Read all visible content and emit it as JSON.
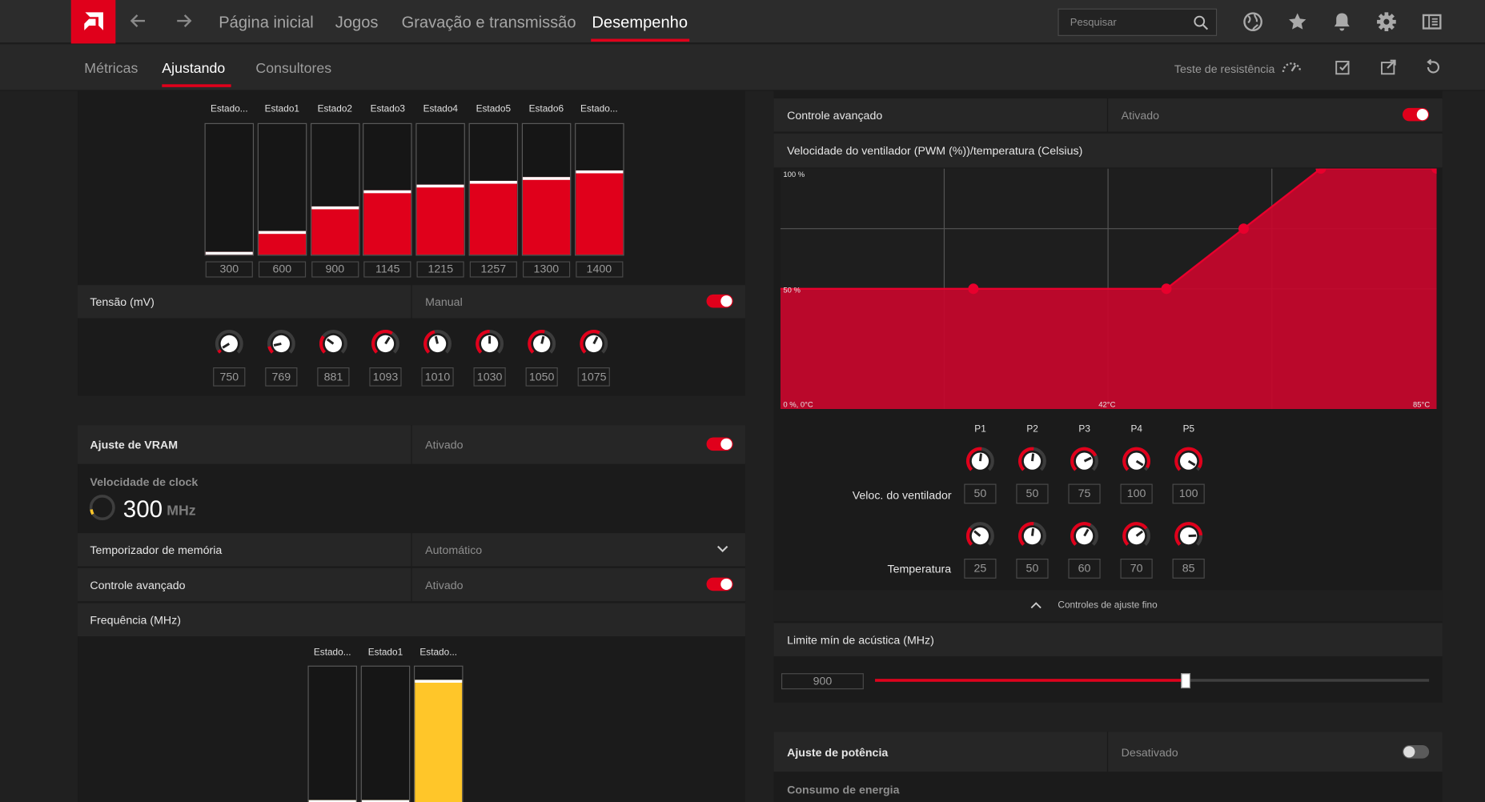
{
  "nav": {
    "links": [
      "Página inicial",
      "Jogos",
      "Gravação e transmissão",
      "Desempenho"
    ],
    "search_placeholder": "Pesquisar"
  },
  "subnav": {
    "tabs": [
      "Métricas",
      "Ajustando",
      "Consultores"
    ],
    "stress_test": "Teste de resistência"
  },
  "gpu_states": {
    "labels": [
      "Estado...",
      "Estado1",
      "Estado2",
      "Estado3",
      "Estado4",
      "Estado5",
      "Estado6",
      "Estado..."
    ],
    "frequencies": [
      "300",
      "600",
      "900",
      "1145",
      "1215",
      "1257",
      "1300",
      "1400"
    ],
    "fill_fraction": [
      0.0,
      0.18,
      0.37,
      0.5,
      0.54,
      0.57,
      0.6,
      0.65
    ]
  },
  "voltage": {
    "label": "Tensão (mV)",
    "mode": "Manual",
    "values": [
      "750",
      "769",
      "881",
      "1093",
      "1010",
      "1030",
      "1050",
      "1075"
    ]
  },
  "vram": {
    "title": "Ajuste de VRAM",
    "status": "Ativado",
    "clock_label": "Velocidade de clock",
    "clock_value": "300",
    "clock_unit": "MHz",
    "timing_label": "Temporizador de memória",
    "timing_value": "Automático",
    "advanced_label": "Controle avançado",
    "advanced_value": "Ativado",
    "freq_label": "Frequência (MHz)",
    "state_labels": [
      "Estado...",
      "Estado1",
      "Estado..."
    ],
    "fill_fraction": [
      0.0,
      0.0,
      0.9
    ]
  },
  "fan": {
    "advanced_label": "Controle avançado",
    "advanced_value": "Ativado",
    "chart_title": "Velocidade do ventilador (PWM (%))/temperatura (Celsius)",
    "y_top": "100 %",
    "y_mid": "50 %",
    "origin": "0 %, 0°C",
    "x_mid": "42°C",
    "x_max": "85°C",
    "points": [
      "P1",
      "P2",
      "P3",
      "P4",
      "P5"
    ],
    "speed_label": "Veloc. do ventilador",
    "speeds": [
      "50",
      "50",
      "75",
      "100",
      "100"
    ],
    "temp_label": "Temperatura",
    "temps": [
      "25",
      "50",
      "60",
      "70",
      "85"
    ],
    "fine_tune": "Controles de ajuste fino",
    "acoustic_label": "Limite mín de acústica (MHz)",
    "acoustic_value": "900",
    "acoustic_fraction": 0.56
  },
  "chart_data": {
    "type": "area",
    "title": "Velocidade do ventilador (PWM (%))/temperatura (Celsius)",
    "x": [
      25,
      50,
      60,
      70,
      85
    ],
    "y": [
      50,
      50,
      75,
      100,
      100
    ],
    "xlim": [
      0,
      85
    ],
    "ylim": [
      0,
      100
    ]
  },
  "power": {
    "title": "Ajuste de potência",
    "status": "Desativado",
    "consumption": "Consumo de energia"
  }
}
